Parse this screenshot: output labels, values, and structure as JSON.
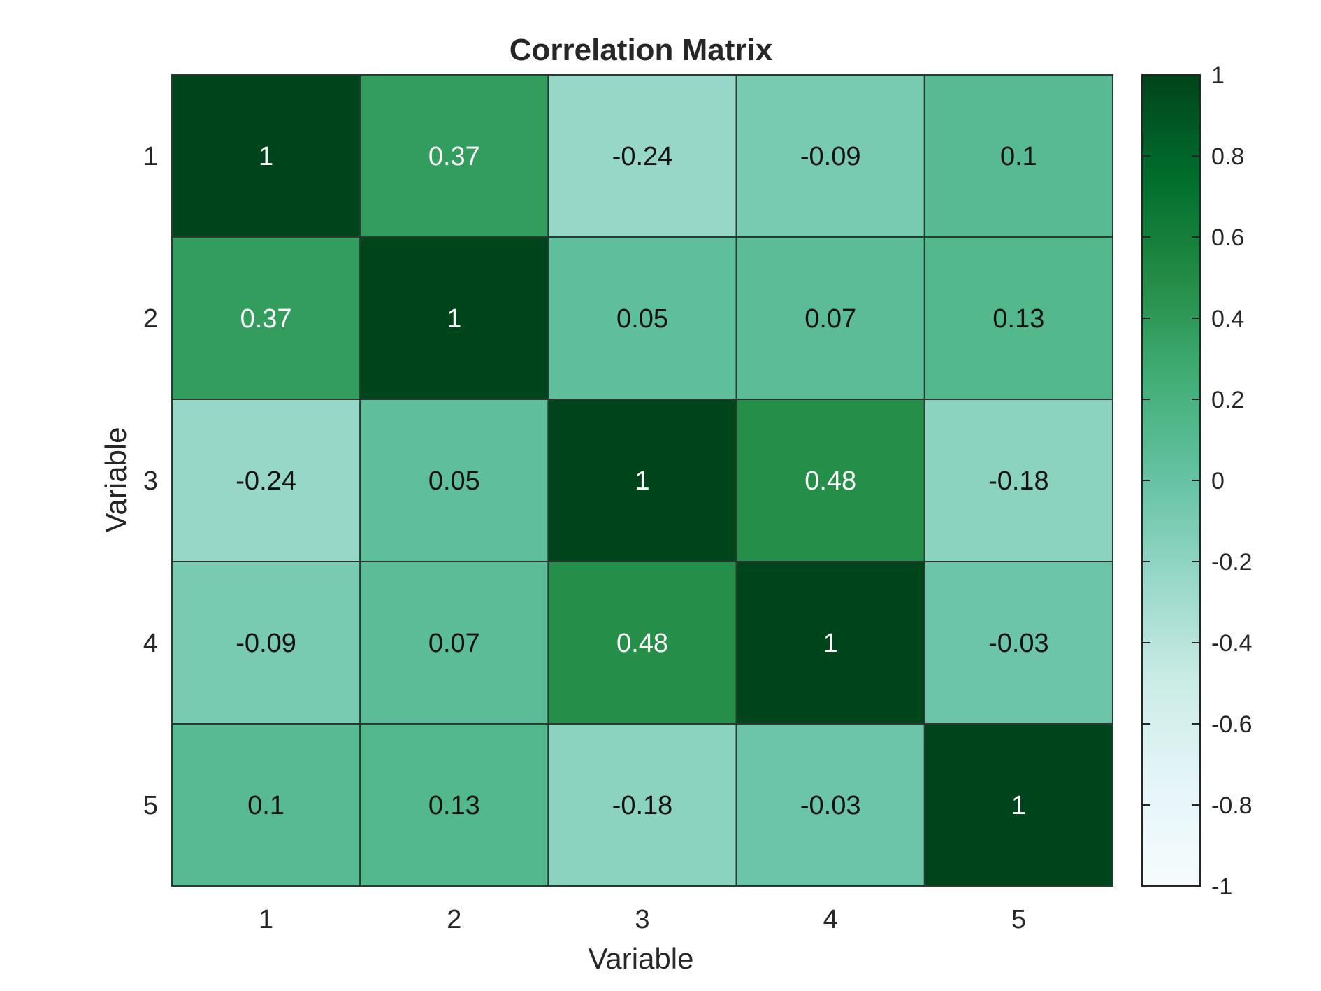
{
  "chart_data": {
    "type": "heatmap",
    "title": "Correlation Matrix",
    "xlabel": "Variable",
    "ylabel": "Variable",
    "x": [
      "1",
      "2",
      "3",
      "4",
      "5"
    ],
    "y": [
      "1",
      "2",
      "3",
      "4",
      "5"
    ],
    "values": [
      [
        1,
        0.37,
        -0.24,
        -0.09,
        0.1
      ],
      [
        0.37,
        1,
        0.05,
        0.07,
        0.13
      ],
      [
        -0.24,
        0.05,
        1,
        0.48,
        -0.18
      ],
      [
        -0.09,
        0.07,
        0.48,
        1,
        -0.03
      ],
      [
        0.1,
        0.13,
        -0.18,
        -0.03,
        1
      ]
    ],
    "cell_labels": [
      [
        "1",
        "0.37",
        "-0.24",
        "-0.09",
        "0.1"
      ],
      [
        "0.37",
        "1",
        "0.05",
        "0.07",
        "0.13"
      ],
      [
        "-0.24",
        "0.05",
        "1",
        "0.48",
        "-0.18"
      ],
      [
        "-0.09",
        "0.07",
        "0.48",
        "1",
        "-0.03"
      ],
      [
        "0.1",
        "0.13",
        "-0.18",
        "-0.03",
        "1"
      ]
    ],
    "colorbar": {
      "range": [
        -1,
        1
      ],
      "ticks": [
        1,
        0.8,
        0.6,
        0.4,
        0.2,
        0,
        -0.2,
        -0.4,
        -0.6,
        -0.8,
        -1
      ],
      "tick_labels": [
        "1",
        "0.8",
        "0.6",
        "0.4",
        "0.2",
        "0",
        "-0.2",
        "-0.4",
        "-0.6",
        "-0.8",
        "-1"
      ],
      "colormap": [
        "#f7fcfd",
        "#e5f5f9",
        "#ccece6",
        "#99d8c9",
        "#66c2a4",
        "#41ae76",
        "#238b45",
        "#006d2c",
        "#00441b"
      ]
    },
    "grid": false,
    "legend": "colorbar-right"
  }
}
